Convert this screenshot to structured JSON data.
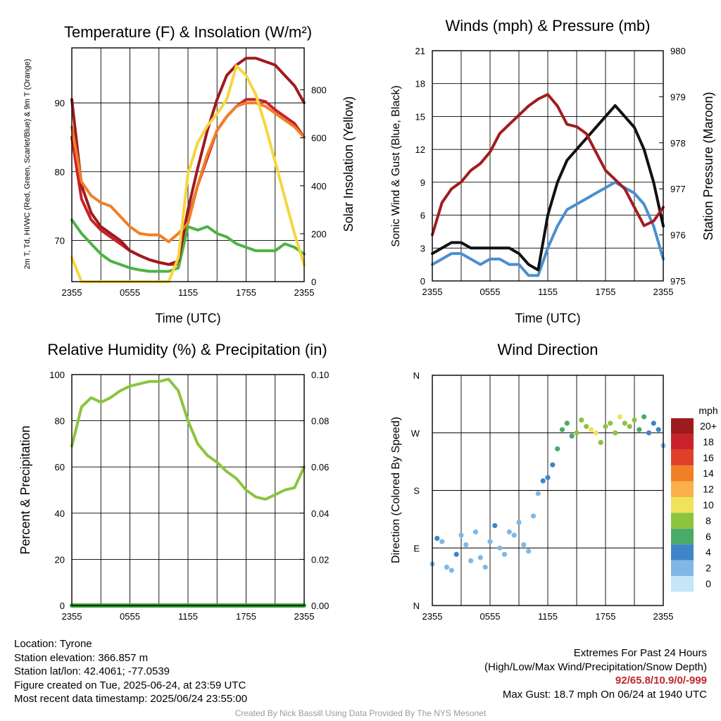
{
  "chart_data": [
    {
      "type": "line",
      "title": "Temperature (F) & Insolation (W/m²)",
      "xlabel": "Time (UTC)",
      "ylabel": "2m T, Td, HI/WC (Red, Green, Scarlet/Blue) & 9m T (Orange)",
      "ylabel_right": "Solar Insolation (Yellow)",
      "x_ticks": [
        "2355",
        "0555",
        "1155",
        "1755",
        "2355"
      ],
      "ylim": [
        64,
        98
      ],
      "y_ticks": [
        70,
        80,
        90
      ],
      "ylim_right": [
        0,
        975
      ],
      "y_ticks_right": [
        0,
        200,
        400,
        600,
        800
      ],
      "x": [
        0,
        1,
        2,
        3,
        4,
        5,
        6,
        7,
        8,
        9,
        10,
        11,
        12,
        13,
        14,
        15,
        16,
        17,
        18,
        19,
        20,
        21,
        22,
        23,
        24
      ],
      "series": [
        {
          "name": "2m T",
          "color": "#c8222a",
          "axis": "left",
          "values": [
            85,
            76,
            73,
            71.5,
            70.5,
            69.5,
            68.5,
            67.8,
            67.2,
            66.8,
            66.5,
            66.5,
            73,
            78,
            82,
            86,
            88,
            89.5,
            90.5,
            90.5,
            90.2,
            89,
            88,
            87,
            85
          ]
        },
        {
          "name": "Td",
          "color": "#4db343",
          "axis": "left",
          "values": [
            73,
            71,
            69.5,
            68,
            67,
            66.5,
            66,
            65.7,
            65.5,
            65.5,
            65.5,
            66,
            72,
            71.5,
            72,
            71,
            70.5,
            69.5,
            69,
            68.5,
            68.5,
            68.5,
            69.5,
            69,
            68
          ]
        },
        {
          "name": "HI/WC",
          "color": "#9e1b1e",
          "axis": "left",
          "values": [
            90.5,
            78,
            74,
            72,
            71,
            70,
            68.5,
            67.8,
            67.2,
            66.8,
            66.5,
            67,
            74.5,
            80.5,
            86,
            90.5,
            94,
            95.5,
            96.5,
            96.5,
            96,
            95.5,
            94,
            92.5,
            90
          ]
        },
        {
          "name": "9m T",
          "color": "#f07f26",
          "axis": "left",
          "values": [
            86.5,
            78.5,
            76.5,
            75.5,
            75,
            73.5,
            72,
            71,
            70.8,
            70.8,
            69.8,
            71,
            72.5,
            78,
            82.5,
            86,
            88,
            89.5,
            90,
            90,
            89.5,
            88.5,
            87.5,
            86.5,
            85
          ]
        },
        {
          "name": "Solar Insolation",
          "color": "#f5d63d",
          "axis": "right",
          "values": [
            100,
            0,
            0,
            0,
            0,
            0,
            0,
            0,
            0,
            0,
            0,
            100,
            450,
            580,
            650,
            700,
            760,
            900,
            860,
            780,
            650,
            500,
            350,
            200,
            70
          ]
        }
      ]
    },
    {
      "type": "line",
      "title": "Winds (mph) & Pressure (mb)",
      "xlabel": "Time (UTC)",
      "ylabel": "Sonic Wind & Gust (Blue, Black)",
      "ylabel_right": "Station Pressure (Maroon)",
      "x_ticks": [
        "2355",
        "0555",
        "1155",
        "1755",
        "2355"
      ],
      "ylim": [
        0,
        21
      ],
      "y_ticks": [
        0,
        3,
        6,
        9,
        12,
        15,
        18,
        21
      ],
      "ylim_right": [
        975,
        980
      ],
      "y_ticks_right": [
        975,
        976,
        977,
        978,
        979,
        980
      ],
      "x": [
        0,
        1,
        2,
        3,
        4,
        5,
        6,
        7,
        8,
        9,
        10,
        11,
        12,
        13,
        14,
        15,
        16,
        17,
        18,
        19,
        20,
        21,
        22,
        23,
        24
      ],
      "series": [
        {
          "name": "Sonic Wind",
          "color": "#4a8fd0",
          "axis": "left",
          "values": [
            1.5,
            2,
            2.5,
            2.5,
            2,
            1.5,
            2,
            2,
            1.5,
            1.5,
            0.5,
            0.5,
            3,
            5,
            6.5,
            7,
            7.5,
            8,
            8.5,
            9,
            8.5,
            8,
            7,
            5,
            2
          ]
        },
        {
          "name": "Gust",
          "color": "#111111",
          "axis": "left",
          "values": [
            2.5,
            3,
            3.5,
            3.5,
            3,
            3,
            3,
            3,
            3,
            2.5,
            1.5,
            1,
            6,
            9,
            11,
            12,
            13,
            14,
            15,
            16,
            15,
            14,
            12,
            9,
            5
          ]
        },
        {
          "name": "Station Pressure",
          "color": "#a01d1f",
          "axis": "right",
          "values": [
            976,
            976.7,
            977,
            977.15,
            977.4,
            977.55,
            977.8,
            978.2,
            978.4,
            978.6,
            978.8,
            978.95,
            979.05,
            978.8,
            978.4,
            978.35,
            978.2,
            977.8,
            977.4,
            977.2,
            977.0,
            976.6,
            976.2,
            976.3,
            976.6
          ]
        }
      ]
    },
    {
      "type": "line",
      "title": "Relative Humidity (%) & Precipitation (in)",
      "xlabel": "",
      "ylabel": "Percent & Precipitation",
      "x_ticks": [
        "2355",
        "0555",
        "1155",
        "1755",
        "2355"
      ],
      "ylim": [
        0,
        100
      ],
      "y_ticks": [
        0,
        20,
        40,
        60,
        80,
        100
      ],
      "ylim_right": [
        0,
        0.1
      ],
      "y_ticks_right": [
        "0.00",
        "0.02",
        "0.04",
        "0.06",
        "0.08",
        "0.10"
      ],
      "x": [
        0,
        1,
        2,
        3,
        4,
        5,
        6,
        7,
        8,
        9,
        10,
        11,
        12,
        13,
        14,
        15,
        16,
        17,
        18,
        19,
        20,
        21,
        22,
        23,
        24
      ],
      "series": [
        {
          "name": "Relative Humidity",
          "color": "#8cc43f",
          "axis": "left",
          "values": [
            69,
            86,
            90,
            88,
            90,
            93,
            95,
            96,
            97,
            97,
            98,
            93,
            80,
            70,
            65,
            62,
            58,
            55,
            50,
            47,
            46,
            48,
            50,
            51,
            60
          ]
        },
        {
          "name": "Precipitation",
          "color": "#3aa43a",
          "axis": "right",
          "values": [
            0,
            0,
            0,
            0,
            0,
            0,
            0,
            0,
            0,
            0,
            0,
            0,
            0,
            0,
            0,
            0,
            0,
            0,
            0,
            0,
            0,
            0,
            0,
            0,
            0
          ]
        }
      ]
    },
    {
      "type": "scatter",
      "title": "Wind Direction",
      "xlabel": "",
      "ylabel": "Direction (Colored By Speed)",
      "x_ticks": [
        "2355",
        "0555",
        "1155",
        "1755",
        "2355"
      ],
      "y_ticks": [
        "N",
        "E",
        "S",
        "W",
        "N"
      ],
      "ylim": [
        0,
        360
      ],
      "legend_title": "mph",
      "legend_labels": [
        "20+",
        "18",
        "16",
        "14",
        "12",
        "10",
        "8",
        "6",
        "4",
        "2",
        "0"
      ],
      "legend_colors": [
        "#9e1b1e",
        "#c8222a",
        "#e0402a",
        "#f07f26",
        "#f9b04a",
        "#f0e25a",
        "#8cc43f",
        "#4aaa6a",
        "#3f85c8",
        "#7fb8e6",
        "#c4e6f8"
      ],
      "x": [
        0,
        0.5,
        1,
        1.5,
        2,
        2.5,
        3,
        3.5,
        4,
        4.5,
        5,
        5.5,
        6,
        6.5,
        7,
        7.5,
        8,
        8.5,
        9,
        9.5,
        10,
        10.5,
        11,
        11.5,
        12,
        12.5,
        13,
        13.5,
        14,
        14.5,
        15,
        15.5,
        16,
        16.5,
        17,
        17.5,
        18,
        18.5,
        19,
        19.5,
        20,
        20.5,
        21,
        21.5,
        22,
        22.5,
        23,
        23.5,
        24
      ],
      "values": [
        65,
        105,
        100,
        60,
        55,
        80,
        110,
        95,
        70,
        115,
        75,
        60,
        100,
        125,
        90,
        80,
        115,
        110,
        130,
        95,
        85,
        140,
        175,
        195,
        200,
        220,
        245,
        275,
        285,
        265,
        270,
        290,
        280,
        275,
        270,
        255,
        280,
        285,
        270,
        295,
        285,
        280,
        290,
        275,
        295,
        270,
        285,
        275,
        250
      ],
      "speeds": [
        2,
        3,
        2,
        2,
        2,
        3,
        2,
        2,
        1,
        2,
        2,
        2,
        2,
        3,
        2,
        2,
        2,
        2,
        2,
        2,
        1,
        2,
        2,
        3,
        4,
        4,
        5,
        5,
        6,
        6,
        7,
        7,
        8,
        9,
        9,
        8,
        8,
        7,
        8,
        9,
        8,
        8,
        7,
        6,
        5,
        4,
        4,
        3,
        2
      ]
    }
  ],
  "station_info": {
    "location": "Location: Tyrone",
    "elevation": "Station elevation: 366.857 m",
    "latlon": "Station lat/lon: 42.4061; -77.0539",
    "created": "Figure created on Tue, 2025-06-24, at 23:59 UTC",
    "recent": "Most recent data timestamp: 2025/06/24 23:55:00"
  },
  "extremes": {
    "title": "Extremes For Past 24 Hours",
    "subtitle": "(High/Low/Max Wind/Precipitation/Snow Depth)",
    "values": "92/65.8/10.9/0/-999",
    "max_gust": "Max Gust: 18.7 mph On 06/24 at 1940 UTC"
  },
  "credit": "Created By Nick Bassill Using Data Provided By The NYS Mesonet",
  "colors": {
    "grid": "#000000",
    "credit": "#9a9a9a",
    "extremes_value": "#c0262d"
  }
}
